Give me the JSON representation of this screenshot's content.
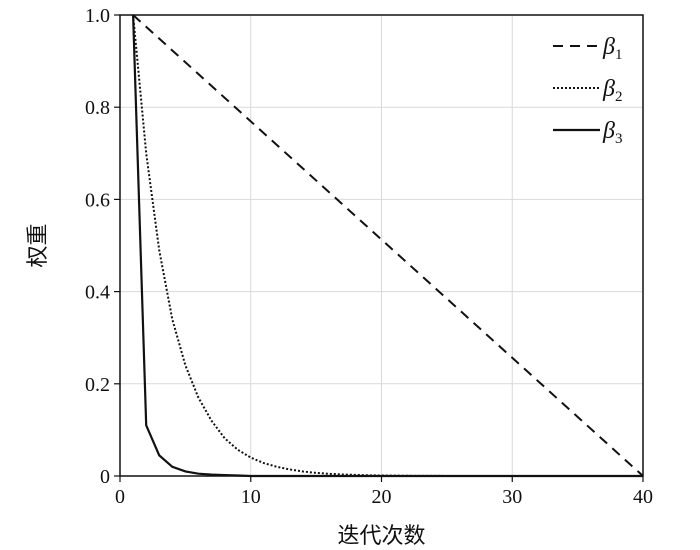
{
  "chart_data": {
    "type": "line",
    "xlabel": "迭代次数",
    "ylabel": "权重",
    "xlim": [
      0,
      40
    ],
    "ylim": [
      0,
      1.0
    ],
    "grid": true,
    "legend_position": "top-right",
    "xticks": [
      0,
      10,
      20,
      30,
      40
    ],
    "xtick_labels": [
      "0",
      "10",
      "20",
      "30",
      "40"
    ],
    "yticks": [
      0,
      0.2,
      0.4,
      0.6,
      0.8,
      1.0
    ],
    "ytick_labels": [
      "0",
      "0.2",
      "0.4",
      "0.6",
      "0.8",
      "1.0"
    ],
    "series": [
      {
        "name": "β",
        "subscript": "1",
        "style": "dashed",
        "color": "#111111",
        "x": [
          1,
          40
        ],
        "y": [
          1.0,
          0.0
        ]
      },
      {
        "name": "β",
        "subscript": "2",
        "style": "dotted",
        "color": "#111111",
        "x": [
          1,
          2,
          3,
          4,
          5,
          6,
          7,
          8,
          9,
          10,
          11,
          12,
          13,
          14,
          15,
          16,
          17,
          18,
          19,
          20,
          22,
          24,
          26,
          28,
          30,
          35,
          40
        ],
        "y": [
          1.0,
          0.7,
          0.49,
          0.34,
          0.24,
          0.17,
          0.12,
          0.082,
          0.057,
          0.04,
          0.028,
          0.02,
          0.014,
          0.0097,
          0.0068,
          0.0047,
          0.0033,
          0.0023,
          0.0016,
          0.0011,
          0.0005,
          0.0003,
          0.0001,
          0.0001,
          0.0,
          0.0,
          0.0
        ]
      },
      {
        "name": "β",
        "subscript": "3",
        "style": "solid",
        "color": "#111111",
        "x": [
          1,
          2,
          3,
          4,
          5,
          6,
          7,
          8,
          9,
          10,
          12,
          15,
          20,
          25,
          30,
          35,
          40
        ],
        "y": [
          1.0,
          0.11,
          0.045,
          0.02,
          0.01,
          0.005,
          0.003,
          0.002,
          0.001,
          0.0,
          0.0,
          0.0,
          0.0,
          0.0,
          0.0,
          0.0,
          0.0
        ]
      }
    ]
  }
}
